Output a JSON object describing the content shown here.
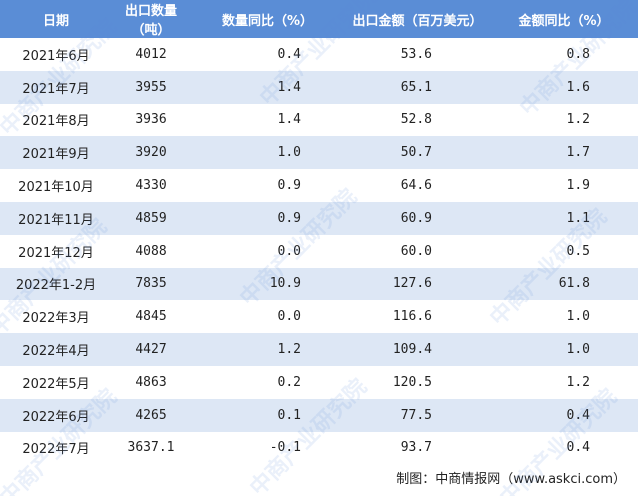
{
  "table": {
    "header": [
      "日期",
      "出口数量（吨）",
      "数量同比（%）",
      "出口金额（百万美元）",
      "金额同比（%）"
    ],
    "rows": [
      [
        "2021年6月",
        "4012",
        "0.4",
        "53.6",
        "0.8"
      ],
      [
        "2021年7月",
        "3955",
        "1.4",
        "65.1",
        "1.6"
      ],
      [
        "2021年8月",
        "3936",
        "1.4",
        "52.8",
        "1.2"
      ],
      [
        "2021年9月",
        "3920",
        "1.0",
        "50.7",
        "1.7"
      ],
      [
        "2021年10月",
        "4330",
        "0.9",
        "64.6",
        "1.9"
      ],
      [
        "2021年11月",
        "4859",
        "0.9",
        "60.9",
        "1.1"
      ],
      [
        "2021年12月",
        "4088",
        "0.0",
        "60.0",
        "0.5"
      ],
      [
        "2022年1-2月",
        "7835",
        "10.9",
        "127.6",
        "61.8"
      ],
      [
        "2022年3月",
        "4845",
        "0.0",
        "116.6",
        "1.0"
      ],
      [
        "2022年4月",
        "4427",
        "1.2",
        "109.4",
        "1.0"
      ],
      [
        "2022年5月",
        "4863",
        "0.2",
        "120.5",
        "1.2"
      ],
      [
        "2022年6月",
        "4265",
        "0.1",
        "77.5",
        "0.4"
      ],
      [
        "2022年7月",
        "3637.1",
        "-0.1",
        "93.7",
        "0.4"
      ]
    ]
  },
  "watermark": "中商产业研究院",
  "footer": "制图：中商情报网（www.askci.com）"
}
